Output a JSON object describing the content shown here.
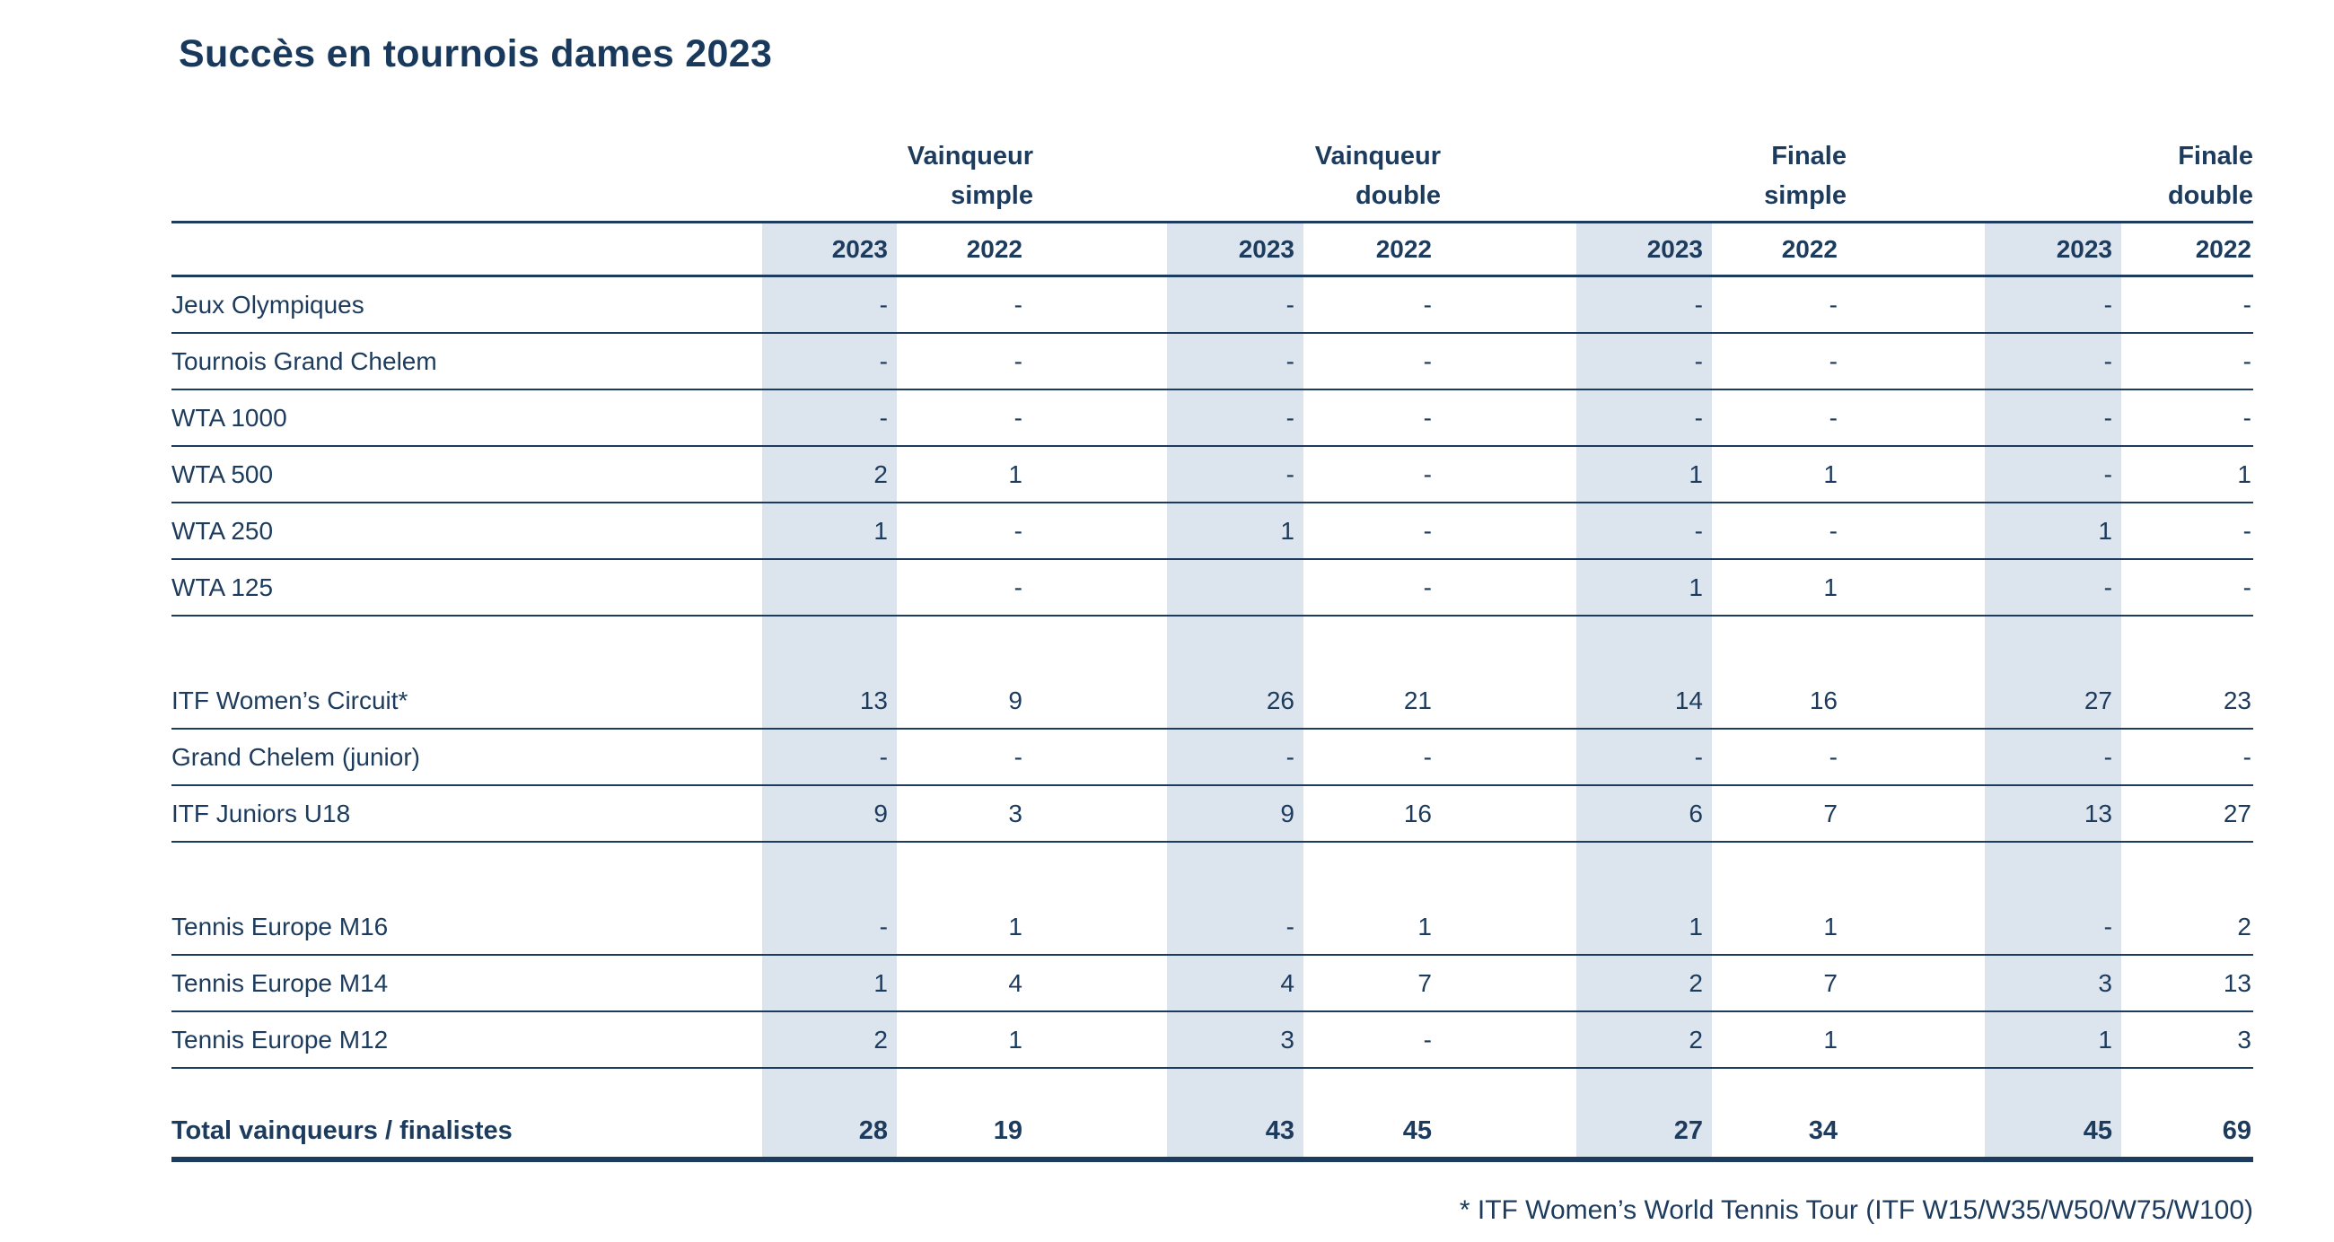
{
  "title": "Succès en tournois dames 2023",
  "table": {
    "groups": [
      {
        "line1": "Vainqueur",
        "line2": "simple"
      },
      {
        "line1": "Vainqueur",
        "line2": "double"
      },
      {
        "line1": "Finale",
        "line2": "simple"
      },
      {
        "line1": "Finale",
        "line2": "double"
      }
    ],
    "year_headers": [
      "2023",
      "2022",
      "2023",
      "2022",
      "2023",
      "2022",
      "2023",
      "2022"
    ],
    "rows": [
      {
        "label": "Jeux Olympiques",
        "values": [
          "-",
          "-",
          "-",
          "-",
          "-",
          "-",
          "-",
          "-"
        ]
      },
      {
        "label": "Tournois Grand Chelem",
        "values": [
          "-",
          "-",
          "-",
          "-",
          "-",
          "-",
          "-",
          "-"
        ]
      },
      {
        "label": "WTA 1000",
        "values": [
          "-",
          "-",
          "-",
          "-",
          "-",
          "-",
          "-",
          "-"
        ]
      },
      {
        "label": "WTA 500",
        "values": [
          "2",
          "1",
          "-",
          "-",
          "1",
          "1",
          "-",
          "1"
        ]
      },
      {
        "label": "WTA 250",
        "values": [
          "1",
          "-",
          "1",
          "-",
          "-",
          "-",
          "1",
          "-"
        ]
      },
      {
        "label": "WTA 125",
        "values": [
          "",
          "-",
          "",
          "-",
          "1",
          "1",
          "-",
          "-"
        ]
      },
      {
        "label": "ITF Women’s Circuit*",
        "values": [
          "13",
          "9",
          "26",
          "21",
          "14",
          "16",
          "27",
          "23"
        ]
      },
      {
        "label": "Grand Chelem (junior)",
        "values": [
          "-",
          "-",
          "-",
          "-",
          "-",
          "-",
          "-",
          "-"
        ]
      },
      {
        "label": "ITF Juniors U18",
        "values": [
          "9",
          "3",
          "9",
          "16",
          "6",
          "7",
          "13",
          "27"
        ]
      },
      {
        "label": "Tennis Europe M16",
        "values": [
          "-",
          "1",
          "-",
          "1",
          "1",
          "1",
          "-",
          "2"
        ]
      },
      {
        "label": "Tennis Europe M14",
        "values": [
          "1",
          "4",
          "4",
          "7",
          "2",
          "7",
          "3",
          "13"
        ]
      },
      {
        "label": "Tennis Europe M12",
        "values": [
          "2",
          "1",
          "3",
          "-",
          "2",
          "1",
          "1",
          "3"
        ]
      }
    ],
    "total": {
      "label": "Total vainqueurs / finalistes",
      "values": [
        "28",
        "19",
        "43",
        "45",
        "27",
        "34",
        "45",
        "69"
      ]
    }
  },
  "footnote": "* ITF Women’s World Tennis Tour (ITF W15/W35/W50/W75/W100)",
  "colors": {
    "text_navy": "#1d3b5c",
    "band_blue": "#dce4ee",
    "background": "#ffffff"
  }
}
